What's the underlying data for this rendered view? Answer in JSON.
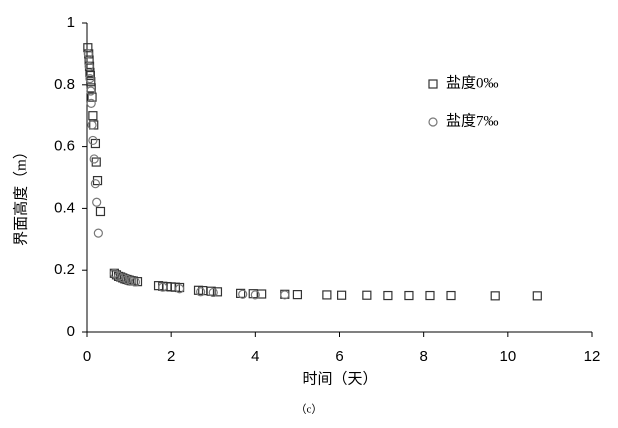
{
  "chart_data": {
    "type": "scatter",
    "xlabel": "时间（天）",
    "ylabel": "界面高度（m）",
    "caption": "（c）",
    "xlim": [
      0,
      12
    ],
    "xticks": [
      0,
      2,
      4,
      6,
      8,
      10,
      12
    ],
    "ylim": [
      0,
      1
    ],
    "yticks": [
      0,
      0.2,
      0.4,
      0.6,
      0.8,
      1
    ],
    "legend": "upper right",
    "series": [
      {
        "name": "盐度0‰",
        "marker": "square",
        "color": "#333333",
        "x": [
          0.02,
          0.04,
          0.05,
          0.06,
          0.07,
          0.08,
          0.09,
          0.1,
          0.12,
          0.14,
          0.16,
          0.2,
          0.22,
          0.25,
          0.32,
          0.65,
          0.7,
          0.75,
          0.8,
          0.85,
          0.9,
          0.95,
          1.0,
          1.05,
          1.1,
          1.2,
          1.7,
          1.8,
          1.9,
          2.0,
          2.1,
          2.2,
          2.65,
          2.75,
          2.95,
          3.1,
          3.65,
          3.95,
          4.15,
          4.7,
          5.0,
          5.7,
          6.05,
          6.65,
          7.15,
          7.65,
          8.15,
          8.65,
          9.7,
          10.7
        ],
        "values": [
          0.92,
          0.9,
          0.88,
          0.86,
          0.84,
          0.83,
          0.81,
          0.79,
          0.76,
          0.7,
          0.67,
          0.61,
          0.55,
          0.49,
          0.39,
          0.19,
          0.185,
          0.18,
          0.178,
          0.175,
          0.172,
          0.17,
          0.168,
          0.166,
          0.165,
          0.163,
          0.15,
          0.148,
          0.147,
          0.146,
          0.145,
          0.144,
          0.135,
          0.134,
          0.132,
          0.13,
          0.125,
          0.124,
          0.123,
          0.122,
          0.121,
          0.12,
          0.119,
          0.119,
          0.118,
          0.118,
          0.118,
          0.118,
          0.117,
          0.117
        ]
      },
      {
        "name": "盐度7‰",
        "marker": "circle",
        "color": "#777777",
        "x": [
          0.03,
          0.05,
          0.07,
          0.09,
          0.1,
          0.12,
          0.14,
          0.17,
          0.2,
          0.23,
          0.27,
          0.65,
          0.75,
          0.85,
          0.95,
          1.05,
          1.15,
          1.8,
          2.2,
          2.7,
          3.0,
          3.7,
          4.0,
          4.7
        ],
        "values": [
          0.9,
          0.86,
          0.82,
          0.78,
          0.74,
          0.67,
          0.62,
          0.56,
          0.48,
          0.42,
          0.32,
          0.19,
          0.18,
          0.175,
          0.17,
          0.165,
          0.162,
          0.145,
          0.14,
          0.13,
          0.128,
          0.122,
          0.12,
          0.12
        ]
      }
    ]
  }
}
